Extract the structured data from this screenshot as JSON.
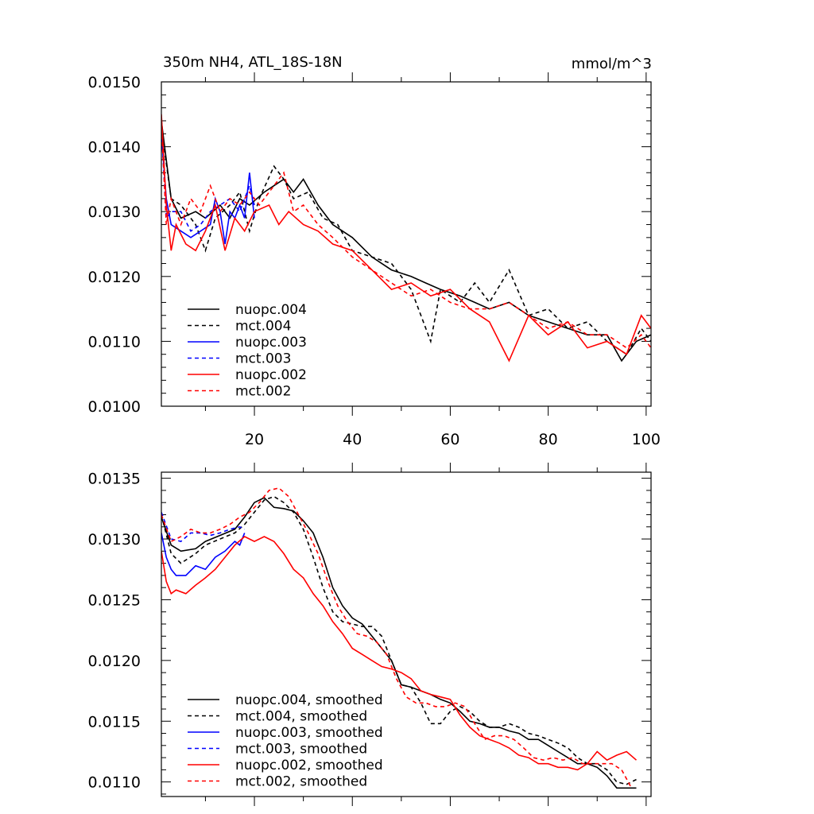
{
  "chart_data": [
    {
      "type": "line",
      "title": "350m NH4, ATL_18S-18N",
      "units": "mmol/m^3",
      "xlim": [
        1,
        101
      ],
      "ylim": [
        0.01,
        0.015
      ],
      "xticks": [
        "20",
        "40",
        "60",
        "80",
        "100"
      ],
      "yticks": [
        "0.0100",
        "0.0110",
        "0.0120",
        "0.0130",
        "0.0140",
        "0.0150"
      ],
      "legend": "bottom-left",
      "series": [
        {
          "name": "nuopc.004",
          "color": "#000000",
          "dash": "solid",
          "x": [
            1,
            3,
            5,
            8,
            10,
            13,
            15,
            17,
            19,
            22,
            24,
            26,
            28,
            30,
            33,
            36,
            40,
            44,
            48,
            52,
            55,
            58,
            62,
            65,
            68,
            72,
            76,
            80,
            84,
            88,
            92,
            95,
            98,
            101
          ],
          "values": [
            0.0144,
            0.0132,
            0.0129,
            0.013,
            0.0129,
            0.0131,
            0.0129,
            0.0132,
            0.0131,
            0.0133,
            0.0134,
            0.0135,
            0.0133,
            0.0135,
            0.0131,
            0.0128,
            0.0126,
            0.0123,
            0.0121,
            0.012,
            0.0119,
            0.0118,
            0.0117,
            0.0116,
            0.0115,
            0.0116,
            0.0114,
            0.0113,
            0.0112,
            0.0111,
            0.0111,
            0.0107,
            0.011,
            0.0111
          ]
        },
        {
          "name": "mct.004",
          "color": "#000000",
          "dash": "dashed",
          "x": [
            1,
            3,
            5,
            8,
            10,
            12,
            15,
            17,
            19,
            21,
            24,
            26,
            28,
            31,
            34,
            37,
            40,
            44,
            48,
            52,
            56,
            58,
            62,
            65,
            68,
            72,
            76,
            80,
            84,
            88,
            92,
            96,
            99,
            101
          ],
          "values": [
            0.0143,
            0.0132,
            0.0131,
            0.0128,
            0.0124,
            0.0129,
            0.0131,
            0.0133,
            0.0127,
            0.0132,
            0.0137,
            0.0135,
            0.0132,
            0.0133,
            0.0129,
            0.0128,
            0.0124,
            0.0123,
            0.0122,
            0.0118,
            0.011,
            0.0118,
            0.0116,
            0.0119,
            0.0116,
            0.0121,
            0.0114,
            0.0115,
            0.0112,
            0.0113,
            0.011,
            0.0108,
            0.0112,
            0.011
          ]
        },
        {
          "name": "nuopc.003",
          "color": "#0000ff",
          "dash": "solid",
          "x": [
            1,
            2,
            3,
            5,
            7,
            9,
            11,
            12,
            13,
            14,
            15,
            16,
            17,
            18,
            19,
            20
          ],
          "values": [
            0.0142,
            0.0132,
            0.0128,
            0.0127,
            0.0126,
            0.0127,
            0.0128,
            0.0132,
            0.013,
            0.0125,
            0.013,
            0.0129,
            0.0131,
            0.0129,
            0.0136,
            0.0129
          ]
        },
        {
          "name": "mct.003",
          "color": "#0000ff",
          "dash": "dashed",
          "x": [
            1,
            2,
            3,
            5,
            7,
            9,
            11,
            13,
            15,
            17,
            19,
            20
          ],
          "values": [
            0.0143,
            0.0129,
            0.013,
            0.013,
            0.0127,
            0.0128,
            0.013,
            0.0131,
            0.0132,
            0.013,
            0.0134,
            0.0131
          ]
        },
        {
          "name": "nuopc.002",
          "color": "#ff0000",
          "dash": "solid",
          "x": [
            1,
            2,
            3,
            4,
            6,
            8,
            10,
            12,
            14,
            16,
            18,
            20,
            23,
            25,
            27,
            30,
            33,
            36,
            40,
            44,
            48,
            52,
            56,
            60,
            64,
            68,
            72,
            76,
            80,
            84,
            88,
            92,
            96,
            99,
            101
          ],
          "values": [
            0.0145,
            0.0131,
            0.0124,
            0.0128,
            0.0125,
            0.0124,
            0.0127,
            0.0131,
            0.0124,
            0.0129,
            0.0127,
            0.013,
            0.0131,
            0.0128,
            0.013,
            0.0128,
            0.0127,
            0.0125,
            0.0124,
            0.0121,
            0.0118,
            0.0119,
            0.0117,
            0.0118,
            0.0115,
            0.0113,
            0.0107,
            0.0114,
            0.0111,
            0.0113,
            0.0109,
            0.011,
            0.0108,
            0.0114,
            0.0112
          ]
        },
        {
          "name": "mct.002",
          "color": "#ff0000",
          "dash": "dashed",
          "x": [
            1,
            2,
            3,
            5,
            7,
            9,
            11,
            13,
            15,
            17,
            19,
            21,
            24,
            26,
            28,
            30,
            33,
            36,
            40,
            44,
            48,
            52,
            56,
            60,
            64,
            68,
            72,
            76,
            80,
            84,
            88,
            92,
            96,
            99,
            101
          ],
          "values": [
            0.0144,
            0.0128,
            0.0132,
            0.0128,
            0.0132,
            0.013,
            0.0134,
            0.013,
            0.0132,
            0.0131,
            0.0133,
            0.0131,
            0.0134,
            0.0136,
            0.013,
            0.0131,
            0.0128,
            0.0126,
            0.0123,
            0.0121,
            0.0119,
            0.0117,
            0.0118,
            0.0116,
            0.0115,
            0.0115,
            0.0116,
            0.0114,
            0.0112,
            0.0113,
            0.0111,
            0.0111,
            0.0109,
            0.0111,
            0.0109
          ]
        }
      ]
    },
    {
      "type": "line",
      "xlim": [
        1,
        101
      ],
      "ylim": [
        0.01088,
        0.01355
      ],
      "yticks": [
        "0.0110",
        "0.0115",
        "0.0120",
        "0.0125",
        "0.0130",
        "0.0135"
      ],
      "legend": "bottom-left",
      "series": [
        {
          "name": "nuopc.004, smoothed",
          "color": "#000000",
          "dash": "solid",
          "x": [
            1,
            3,
            5,
            8,
            10,
            13,
            16,
            18,
            20,
            22,
            24,
            26,
            28,
            30,
            32,
            34,
            36,
            38,
            40,
            42,
            44,
            46,
            48,
            50,
            52,
            54,
            56,
            58,
            60,
            62,
            64,
            66,
            68,
            70,
            72,
            74,
            76,
            78,
            80,
            82,
            84,
            86,
            88,
            90,
            92,
            94,
            96,
            98
          ],
          "values": [
            0.01318,
            0.01295,
            0.0129,
            0.01292,
            0.01298,
            0.01303,
            0.01308,
            0.01318,
            0.0133,
            0.01334,
            0.01326,
            0.01325,
            0.01323,
            0.01315,
            0.01305,
            0.01285,
            0.0126,
            0.01245,
            0.01235,
            0.0123,
            0.0122,
            0.0121,
            0.012,
            0.0118,
            0.01178,
            0.01175,
            0.01172,
            0.01168,
            0.01165,
            0.01158,
            0.0115,
            0.01148,
            0.01145,
            0.01145,
            0.01142,
            0.0114,
            0.01135,
            0.01135,
            0.0113,
            0.01125,
            0.0112,
            0.01115,
            0.01115,
            0.01112,
            0.01105,
            0.01095,
            0.01095,
            0.01095
          ]
        },
        {
          "name": "mct.004, smoothed",
          "color": "#000000",
          "dash": "dashed",
          "x": [
            1,
            3,
            5,
            8,
            10,
            13,
            16,
            18,
            20,
            22,
            24,
            26,
            28,
            30,
            32,
            34,
            36,
            38,
            40,
            42,
            44,
            46,
            48,
            50,
            52,
            54,
            56,
            58,
            60,
            62,
            64,
            66,
            68,
            70,
            72,
            74,
            76,
            78,
            80,
            82,
            84,
            86,
            88,
            90,
            92,
            94,
            96,
            98
          ],
          "values": [
            0.0132,
            0.01288,
            0.0128,
            0.01288,
            0.01295,
            0.013,
            0.01305,
            0.01312,
            0.01322,
            0.01332,
            0.01335,
            0.0133,
            0.01322,
            0.01308,
            0.01285,
            0.0126,
            0.0124,
            0.01232,
            0.0123,
            0.01228,
            0.01228,
            0.0122,
            0.012,
            0.0118,
            0.01178,
            0.01165,
            0.01148,
            0.01148,
            0.01158,
            0.01162,
            0.01158,
            0.0115,
            0.01145,
            0.01145,
            0.01148,
            0.01145,
            0.0114,
            0.01138,
            0.01135,
            0.01132,
            0.01128,
            0.0112,
            0.01115,
            0.01115,
            0.0111,
            0.011,
            0.01098,
            0.01102
          ]
        },
        {
          "name": "nuopc.003, smoothed",
          "color": "#0000ff",
          "dash": "solid",
          "x": [
            1,
            2,
            3,
            4,
            6,
            8,
            10,
            12,
            14,
            16,
            17,
            18
          ],
          "values": [
            0.01305,
            0.01285,
            0.01275,
            0.0127,
            0.0127,
            0.01278,
            0.01275,
            0.01285,
            0.0129,
            0.01298,
            0.01295,
            0.01305
          ]
        },
        {
          "name": "mct.003, smoothed",
          "color": "#0000ff",
          "dash": "dashed",
          "x": [
            1,
            3,
            5,
            7,
            9,
            11,
            13,
            15,
            17,
            18
          ],
          "values": [
            0.01322,
            0.013,
            0.01298,
            0.01305,
            0.01305,
            0.01303,
            0.01305,
            0.01308,
            0.0131,
            0.01308
          ]
        },
        {
          "name": "nuopc.002, smoothed",
          "color": "#ff0000",
          "dash": "solid",
          "x": [
            1,
            2,
            3,
            4,
            6,
            8,
            10,
            12,
            14,
            16,
            18,
            20,
            22,
            24,
            26,
            28,
            30,
            32,
            34,
            36,
            38,
            40,
            42,
            44,
            46,
            48,
            50,
            52,
            54,
            56,
            58,
            60,
            62,
            64,
            66,
            68,
            70,
            72,
            74,
            76,
            78,
            80,
            82,
            84,
            86,
            88,
            90,
            92,
            94,
            96,
            98
          ],
          "values": [
            0.0129,
            0.01265,
            0.01255,
            0.01258,
            0.01255,
            0.01262,
            0.01268,
            0.01275,
            0.01285,
            0.01295,
            0.01302,
            0.01298,
            0.01302,
            0.01298,
            0.01288,
            0.01275,
            0.01268,
            0.01255,
            0.01245,
            0.01232,
            0.01222,
            0.0121,
            0.01205,
            0.012,
            0.01195,
            0.01193,
            0.0119,
            0.01185,
            0.01175,
            0.01172,
            0.0117,
            0.01168,
            0.01155,
            0.01145,
            0.01138,
            0.01135,
            0.01132,
            0.01128,
            0.01122,
            0.0112,
            0.01115,
            0.01115,
            0.01112,
            0.01112,
            0.0111,
            0.01115,
            0.01125,
            0.01118,
            0.01122,
            0.01125,
            0.01118
          ]
        },
        {
          "name": "mct.002, smoothed",
          "color": "#ff0000",
          "dash": "dashed",
          "x": [
            1,
            3,
            5,
            7,
            9,
            11,
            13,
            15,
            17,
            19,
            21,
            23,
            25,
            27,
            29,
            31,
            33,
            35,
            37,
            39,
            41,
            43,
            45,
            47,
            49,
            51,
            53,
            55,
            57,
            59,
            61,
            63,
            65,
            67,
            69,
            71,
            73,
            75,
            77,
            79,
            81,
            83,
            85,
            87,
            89,
            91,
            93,
            95,
            97
          ],
          "values": [
            0.0132,
            0.01298,
            0.01302,
            0.01308,
            0.01305,
            0.01305,
            0.01308,
            0.01312,
            0.01318,
            0.01322,
            0.0133,
            0.0134,
            0.01342,
            0.01335,
            0.0132,
            0.01305,
            0.01288,
            0.01265,
            0.01245,
            0.01232,
            0.01222,
            0.0122,
            0.01215,
            0.01205,
            0.01185,
            0.0117,
            0.01165,
            0.01165,
            0.01162,
            0.01162,
            0.01165,
            0.01162,
            0.01148,
            0.01135,
            0.01138,
            0.01138,
            0.01135,
            0.01128,
            0.0112,
            0.01118,
            0.0112,
            0.01118,
            0.0112,
            0.01115,
            0.01115,
            0.01115,
            0.01115,
            0.0111,
            0.01095
          ]
        }
      ]
    }
  ]
}
